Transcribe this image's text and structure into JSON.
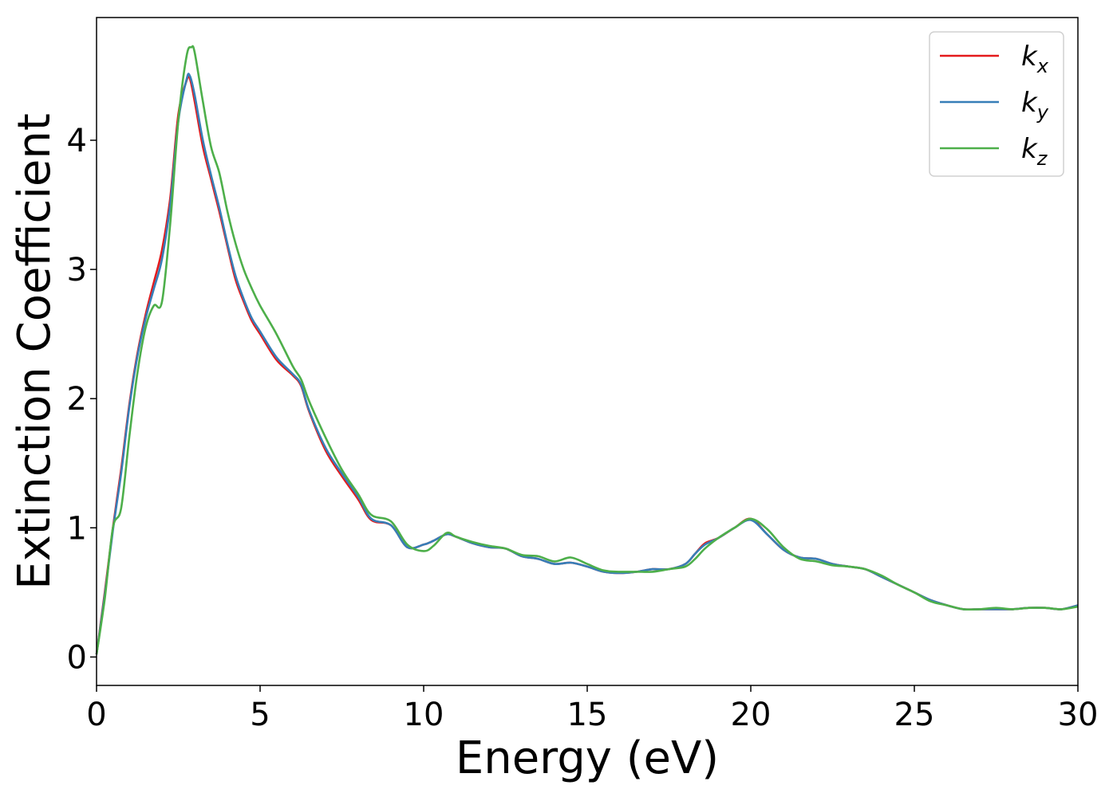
{
  "chart_data": {
    "type": "line",
    "title": "",
    "xlabel": "Energy (eV)",
    "ylabel": "Extinction Coefficient",
    "xlim": [
      0,
      30
    ],
    "ylim": [
      -0.22,
      4.95
    ],
    "xticks": [
      0,
      5,
      10,
      15,
      20,
      25,
      30
    ],
    "yticks": [
      0,
      1,
      2,
      3,
      4
    ],
    "grid": false,
    "legend_position": "top-right",
    "series": [
      {
        "name": "k_x",
        "legend_base": "k",
        "legend_sub": "x",
        "color": "#e41a1c",
        "x": [
          0,
          0.25,
          0.5,
          0.75,
          1.0,
          1.25,
          1.5,
          1.75,
          2.0,
          2.25,
          2.5,
          2.75,
          2.85,
          3.0,
          3.25,
          3.5,
          3.75,
          4.0,
          4.25,
          4.5,
          4.75,
          5.0,
          5.5,
          6.0,
          6.25,
          6.5,
          7.0,
          7.5,
          8.0,
          8.4,
          9.0,
          9.5,
          10.0,
          10.3,
          10.7,
          11.0,
          11.5,
          12.0,
          12.5,
          13.0,
          13.5,
          14.0,
          14.5,
          15.0,
          15.5,
          16.0,
          16.5,
          17.0,
          17.5,
          18.0,
          18.3,
          18.6,
          19.0,
          19.5,
          20.0,
          20.5,
          21.0,
          21.5,
          22.0,
          22.5,
          23.0,
          23.5,
          24.0,
          24.5,
          25.0,
          25.5,
          26.0,
          26.5,
          27.0,
          27.5,
          28.0,
          28.5,
          29.0,
          29.5,
          30.0
        ],
        "values": [
          0.02,
          0.5,
          1.0,
          1.45,
          1.95,
          2.35,
          2.65,
          2.9,
          3.15,
          3.55,
          4.2,
          4.46,
          4.48,
          4.3,
          3.95,
          3.7,
          3.45,
          3.18,
          2.92,
          2.75,
          2.6,
          2.5,
          2.3,
          2.18,
          2.1,
          1.9,
          1.6,
          1.4,
          1.22,
          1.06,
          1.02,
          0.85,
          0.87,
          0.9,
          0.95,
          0.93,
          0.88,
          0.85,
          0.84,
          0.78,
          0.76,
          0.72,
          0.73,
          0.7,
          0.66,
          0.65,
          0.66,
          0.68,
          0.68,
          0.72,
          0.8,
          0.88,
          0.92,
          1.0,
          1.07,
          0.95,
          0.83,
          0.77,
          0.76,
          0.72,
          0.7,
          0.68,
          0.62,
          0.56,
          0.5,
          0.44,
          0.4,
          0.37,
          0.37,
          0.37,
          0.37,
          0.38,
          0.38,
          0.37,
          0.4
        ]
      },
      {
        "name": "k_y",
        "legend_base": "k",
        "legend_sub": "y",
        "color": "#377eb8",
        "x": [
          0,
          0.25,
          0.5,
          0.75,
          1.0,
          1.25,
          1.5,
          1.75,
          2.0,
          2.25,
          2.5,
          2.75,
          2.85,
          3.0,
          3.25,
          3.5,
          3.75,
          4.0,
          4.25,
          4.5,
          4.75,
          5.0,
          5.5,
          6.0,
          6.25,
          6.5,
          7.0,
          7.5,
          8.0,
          8.4,
          9.0,
          9.5,
          10.0,
          10.3,
          10.7,
          11.0,
          11.5,
          12.0,
          12.5,
          13.0,
          13.5,
          14.0,
          14.5,
          15.0,
          15.5,
          16.0,
          16.5,
          17.0,
          17.5,
          18.0,
          18.3,
          18.6,
          19.0,
          19.5,
          20.0,
          20.5,
          21.0,
          21.5,
          22.0,
          22.5,
          23.0,
          23.5,
          24.0,
          24.5,
          25.0,
          25.5,
          26.0,
          26.5,
          27.0,
          27.5,
          28.0,
          28.5,
          29.0,
          29.5,
          30.0
        ],
        "values": [
          0.02,
          0.48,
          0.98,
          1.42,
          1.93,
          2.33,
          2.62,
          2.85,
          3.08,
          3.5,
          4.15,
          4.47,
          4.5,
          4.35,
          4.0,
          3.73,
          3.48,
          3.2,
          2.95,
          2.77,
          2.62,
          2.52,
          2.32,
          2.19,
          2.11,
          1.91,
          1.62,
          1.42,
          1.24,
          1.07,
          1.02,
          0.85,
          0.87,
          0.9,
          0.95,
          0.93,
          0.88,
          0.85,
          0.84,
          0.78,
          0.76,
          0.72,
          0.73,
          0.7,
          0.66,
          0.65,
          0.66,
          0.68,
          0.68,
          0.72,
          0.8,
          0.87,
          0.92,
          1.0,
          1.06,
          0.95,
          0.83,
          0.77,
          0.76,
          0.72,
          0.7,
          0.68,
          0.62,
          0.56,
          0.5,
          0.44,
          0.4,
          0.37,
          0.37,
          0.37,
          0.37,
          0.38,
          0.38,
          0.37,
          0.4
        ]
      },
      {
        "name": "k_z",
        "legend_base": "k",
        "legend_sub": "z",
        "color": "#4daf4a",
        "x": [
          0,
          0.25,
          0.5,
          0.75,
          1.0,
          1.25,
          1.5,
          1.75,
          2.0,
          2.25,
          2.5,
          2.75,
          2.9,
          3.0,
          3.25,
          3.5,
          3.75,
          4.0,
          4.25,
          4.5,
          4.75,
          5.0,
          5.5,
          6.0,
          6.25,
          6.5,
          7.0,
          7.5,
          8.0,
          8.4,
          9.0,
          9.5,
          10.0,
          10.3,
          10.7,
          11.0,
          11.5,
          12.0,
          12.5,
          13.0,
          13.5,
          14.0,
          14.5,
          15.0,
          15.5,
          16.0,
          16.5,
          17.0,
          17.5,
          18.0,
          18.3,
          18.6,
          19.0,
          19.5,
          20.0,
          20.5,
          21.0,
          21.5,
          22.0,
          22.5,
          23.0,
          23.5,
          24.0,
          24.5,
          25.0,
          25.5,
          26.0,
          26.5,
          27.0,
          27.5,
          28.0,
          28.5,
          29.0,
          29.5,
          30.0
        ],
        "values": [
          0.02,
          0.45,
          1.0,
          1.15,
          1.7,
          2.2,
          2.55,
          2.72,
          2.75,
          3.35,
          4.15,
          4.65,
          4.72,
          4.68,
          4.3,
          3.95,
          3.75,
          3.45,
          3.2,
          3.0,
          2.85,
          2.72,
          2.5,
          2.25,
          2.15,
          1.98,
          1.7,
          1.45,
          1.26,
          1.1,
          1.05,
          0.87,
          0.82,
          0.86,
          0.96,
          0.93,
          0.89,
          0.86,
          0.84,
          0.79,
          0.78,
          0.74,
          0.77,
          0.72,
          0.67,
          0.66,
          0.66,
          0.66,
          0.68,
          0.7,
          0.76,
          0.84,
          0.92,
          1.0,
          1.07,
          0.99,
          0.85,
          0.76,
          0.74,
          0.71,
          0.7,
          0.68,
          0.63,
          0.56,
          0.5,
          0.43,
          0.4,
          0.37,
          0.37,
          0.38,
          0.37,
          0.38,
          0.38,
          0.37,
          0.39
        ]
      }
    ]
  }
}
